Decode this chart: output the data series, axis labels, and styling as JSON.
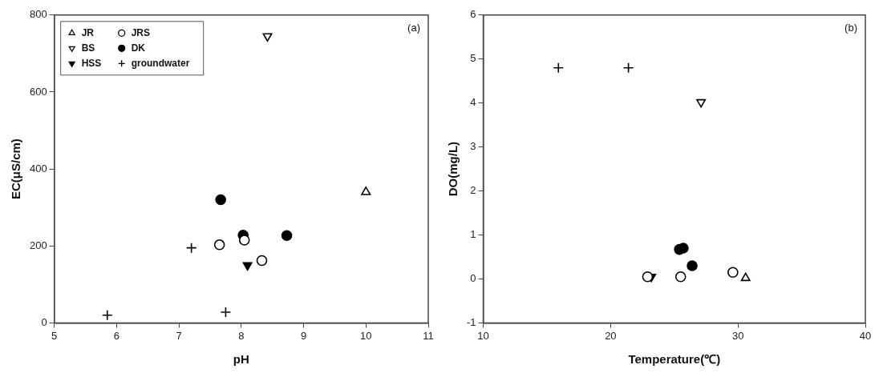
{
  "chart_data": [
    {
      "type": "scatter",
      "xlabel": "pH",
      "ylabel": "EC(μS/cm)",
      "annotations": [
        "(a)"
      ],
      "xlim": [
        5,
        11
      ],
      "xticks": [
        5,
        6,
        7,
        8,
        9,
        10,
        11
      ],
      "ylim": [
        0,
        800
      ],
      "yticks": [
        0,
        200,
        400,
        600,
        800
      ],
      "grid": false,
      "legend": "top left",
      "series": [
        {
          "name": "JR",
          "color": "#000000",
          "marker": "triangle-open",
          "x": [
            10.0
          ],
          "values": [
            340
          ]
        },
        {
          "name": "JRS",
          "color": "#000000",
          "marker": "circle-open",
          "x": [
            7.65,
            8.05,
            8.33
          ],
          "values": [
            203,
            215,
            162
          ]
        },
        {
          "name": "BS",
          "color": "#000000",
          "marker": "triangle-down-open",
          "x": [
            8.42
          ],
          "values": [
            745
          ]
        },
        {
          "name": "DK",
          "color": "#000000",
          "marker": "circle",
          "x": [
            7.67,
            8.03,
            8.73
          ],
          "values": [
            320,
            228,
            227
          ]
        },
        {
          "name": "HSS",
          "color": "#000000",
          "marker": "triangle-down",
          "x": [
            8.1
          ],
          "values": [
            150
          ]
        },
        {
          "name": "groundwater",
          "color": "#000000",
          "marker": "cross",
          "x": [
            5.85,
            7.2,
            7.75
          ],
          "values": [
            20,
            195,
            28
          ]
        }
      ]
    },
    {
      "type": "scatter",
      "xlabel": "Temperature(℃)",
      "ylabel": "DO(mg/L)",
      "annotations": [
        "(b)"
      ],
      "xlim": [
        10,
        40
      ],
      "xticks": [
        10,
        20,
        30,
        40
      ],
      "ylim": [
        -1,
        6
      ],
      "yticks": [
        -1,
        0,
        1,
        2,
        3,
        4,
        5,
        6
      ],
      "grid": false,
      "legend": false,
      "series": [
        {
          "color": "#000000",
          "marker": "triangle-open",
          "x": [
            30.6
          ],
          "values": [
            0.02
          ]
        },
        {
          "color": "#000000",
          "marker": "circle-open",
          "x": [
            22.9,
            25.5,
            29.6
          ],
          "values": [
            0.05,
            0.05,
            0.15
          ]
        },
        {
          "color": "#000000",
          "marker": "triangle-down-open",
          "x": [
            27.1
          ],
          "values": [
            4.02
          ]
        },
        {
          "color": "#000000",
          "marker": "circle",
          "x": [
            25.4,
            25.7,
            26.4
          ],
          "values": [
            0.67,
            0.7,
            0.3
          ]
        },
        {
          "color": "#000000",
          "marker": "triangle-down",
          "x": [
            23.2
          ],
          "values": [
            0.05
          ]
        },
        {
          "color": "#000000",
          "marker": "cross",
          "x": [
            15.9,
            21.4
          ],
          "values": [
            4.8,
            4.8
          ]
        }
      ]
    }
  ]
}
